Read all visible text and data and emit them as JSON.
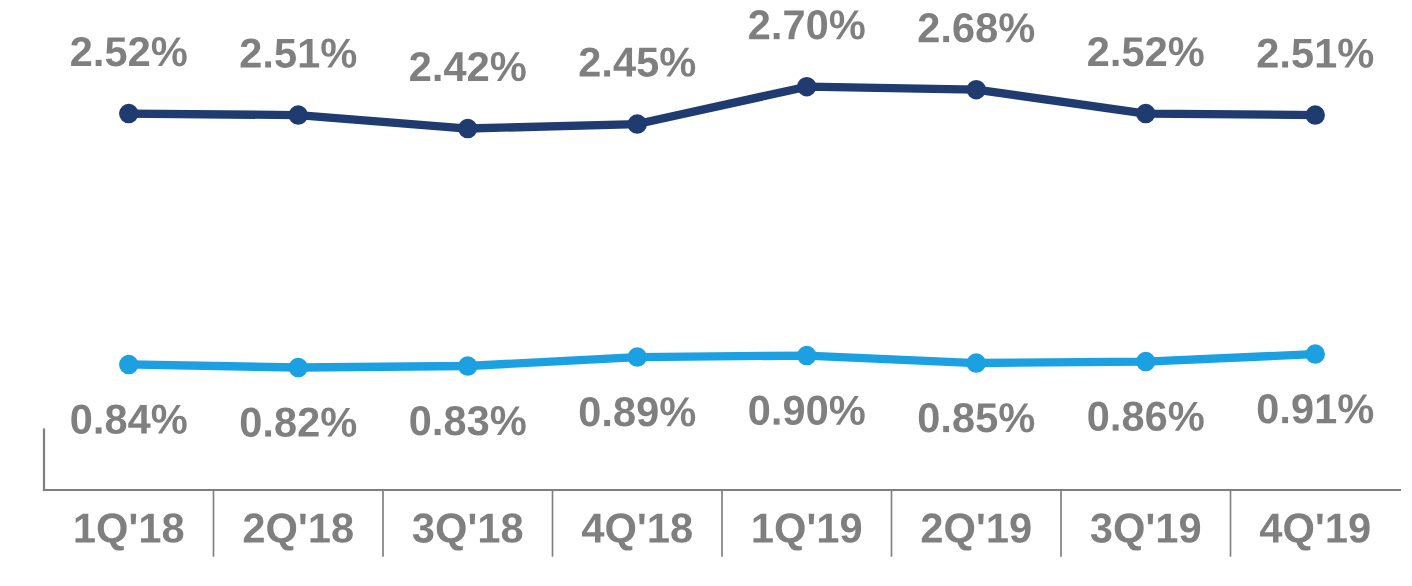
{
  "chart_data": {
    "type": "line",
    "categories": [
      "1Q'18",
      "2Q'18",
      "3Q'18",
      "4Q'18",
      "1Q'19",
      "2Q'19",
      "3Q'19",
      "4Q'19"
    ],
    "series": [
      {
        "color": "#1f3b6f",
        "values": [
          2.52,
          2.51,
          2.42,
          2.45,
          2.7,
          2.68,
          2.52,
          2.51
        ],
        "value_labels": [
          "2.52%",
          "2.51%",
          "2.42%",
          "2.45%",
          "2.70%",
          "2.68%",
          "2.52%",
          "2.51%"
        ]
      },
      {
        "color": "#1ba1e2",
        "values": [
          0.84,
          0.82,
          0.83,
          0.89,
          0.9,
          0.85,
          0.86,
          0.91
        ],
        "value_labels": [
          "0.84%",
          "0.82%",
          "0.83%",
          "0.89%",
          "0.90%",
          "0.85%",
          "0.86%",
          "0.91%"
        ]
      }
    ],
    "marker": "circle",
    "line_style": "solid",
    "grid": false,
    "legend": false
  }
}
